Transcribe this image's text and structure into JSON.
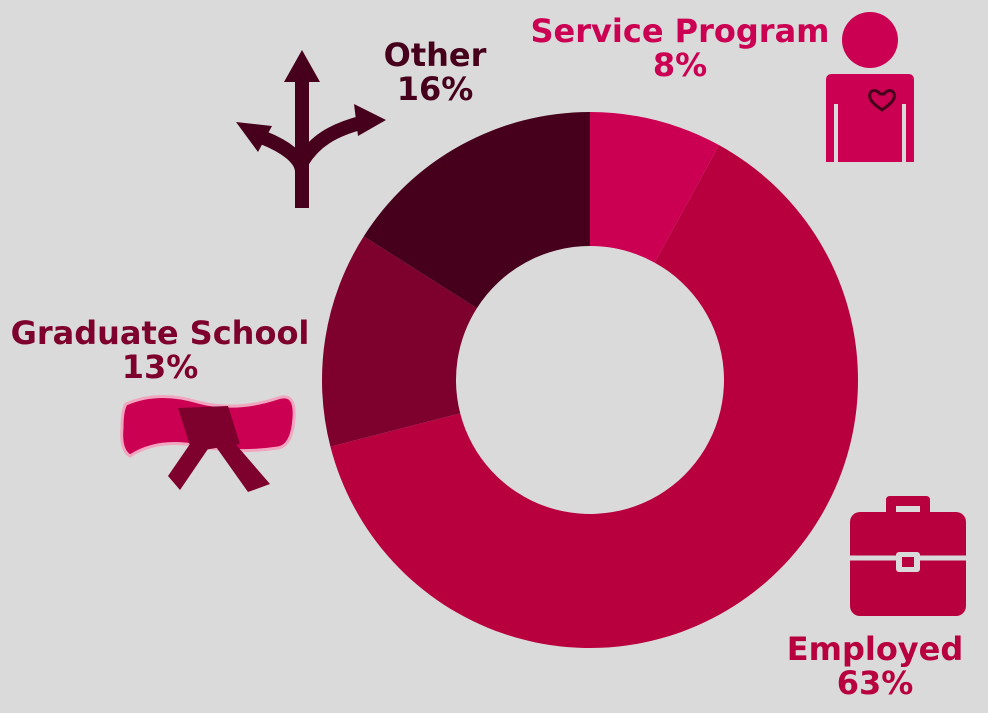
{
  "chart_data": {
    "type": "pie",
    "donut": true,
    "start_angle_deg": 0,
    "direction": "clockwise",
    "slices": [
      {
        "label": "Service Program",
        "value": 8,
        "value_label": "8%",
        "color": "#cc0052"
      },
      {
        "label": "Employed",
        "value": 63,
        "value_label": "63%",
        "color": "#b8003f"
      },
      {
        "label": "Graduate School",
        "value": 13,
        "value_label": "13%",
        "color": "#7d002d"
      },
      {
        "label": "Other",
        "value": 16,
        "value_label": "16%",
        "color": "#46001b"
      }
    ]
  },
  "colors": {
    "background": "#dadada",
    "service_label": "#cc0052",
    "employed_label": "#b8003f",
    "graduate_label": "#7d002d",
    "other_label": "#46001b"
  },
  "icons": {
    "service": "person-heart-icon",
    "employed": "briefcase-icon",
    "graduate": "diploma-scroll-icon",
    "other": "crossroads-arrows-icon"
  }
}
